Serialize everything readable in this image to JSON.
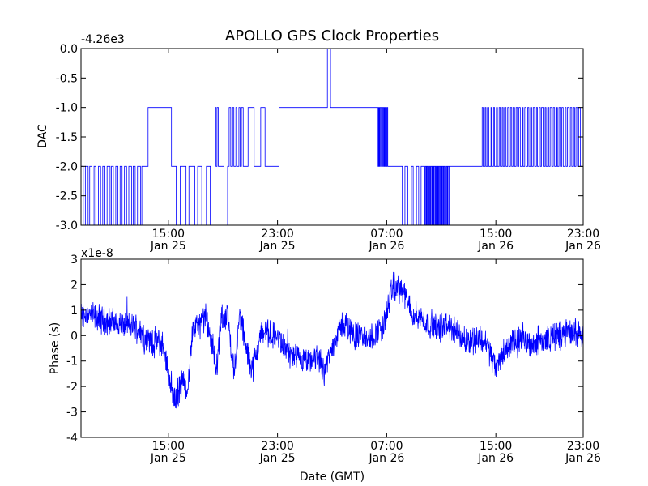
{
  "chart_data": [
    {
      "type": "line",
      "title": "APOLLO GPS Clock Properties",
      "offset_label": "-4.26e3",
      "ylabel": "DAC",
      "xlabel": "",
      "ylim": [
        -3.0,
        0.0
      ],
      "xlim_hours": [
        10.2,
        26.3
      ],
      "line_color": "#0000ff",
      "yticks": [
        {
          "value": 0.0,
          "label": "0.0"
        },
        {
          "value": -0.5,
          "label": "-0.5"
        },
        {
          "value": -1.0,
          "label": "-1.0"
        },
        {
          "value": -1.5,
          "label": "-1.5"
        },
        {
          "value": -2.0,
          "label": "-2.0"
        },
        {
          "value": -2.5,
          "label": "-2.5"
        },
        {
          "value": -3.0,
          "label": "-3.0"
        }
      ],
      "xticks": [
        {
          "hours": 13,
          "time": "15:00",
          "date": "Jan 25"
        },
        {
          "hours": 16.5,
          "time": "23:00",
          "date": "Jan 25"
        },
        {
          "hours": 20,
          "time": "07:00",
          "date": "Jan 26"
        },
        {
          "hours": 23.5,
          "time": "15:00",
          "date": "Jan 26"
        },
        {
          "hours": 27,
          "time": "23:00",
          "date": "Jan 26"
        }
      ],
      "segments": [
        {
          "start": 10.2,
          "end": 12.15,
          "level": -2.0,
          "toggle_to": -3.0,
          "count": 14
        },
        {
          "start": 12.15,
          "end": 12.35,
          "level": -2.0,
          "toggle_to": -1.0,
          "count": 0
        },
        {
          "start": 12.35,
          "end": 13.1,
          "level": -1.0,
          "toggle_to": -2.0,
          "count": 0
        },
        {
          "start": 13.1,
          "end": 14.5,
          "level": -2.0,
          "toggle_to": -3.0,
          "count": 5
        },
        {
          "start": 14.5,
          "end": 14.62,
          "level": -1.0,
          "toggle_to": -2.0,
          "count": 2
        },
        {
          "start": 14.62,
          "end": 14.9,
          "level": -2.0,
          "toggle_to": -3.0,
          "count": 1
        },
        {
          "start": 14.9,
          "end": 15.4,
          "level": -2.0,
          "toggle_to": -1.0,
          "count": 5
        },
        {
          "start": 15.4,
          "end": 16.1,
          "level": -2.0,
          "toggle_to": -1.0,
          "count": 2
        },
        {
          "start": 16.1,
          "end": 16.55,
          "level": -2.0,
          "toggle_to": -1.0,
          "count": 0
        },
        {
          "start": 16.55,
          "end": 17.2,
          "level": -1.0,
          "toggle_to": -2.0,
          "count": 0
        },
        {
          "start": 17.2,
          "end": 18.1,
          "level": -1.0,
          "toggle_to": -1.0,
          "count": 0
        },
        {
          "start": 18.1,
          "end": 18.2,
          "level": 0.0,
          "toggle_to": -1.0,
          "count": 0
        },
        {
          "start": 18.2,
          "end": 19.7,
          "level": -1.0,
          "toggle_to": -1.0,
          "count": 0
        },
        {
          "start": 19.7,
          "end": 20.05,
          "level": -1.0,
          "toggle_to": -2.0,
          "count": 9
        },
        {
          "start": 20.05,
          "end": 20.5,
          "level": -2.0,
          "toggle_to": -2.0,
          "count": 0
        },
        {
          "start": 20.5,
          "end": 21.2,
          "level": -3.0,
          "toggle_to": -2.0,
          "count": 4
        },
        {
          "start": 21.2,
          "end": 22.0,
          "level": -2.0,
          "toggle_to": -3.0,
          "count": 18
        },
        {
          "start": 22.0,
          "end": 23.0,
          "level": -2.0,
          "toggle_to": -2.0,
          "count": 0
        },
        {
          "start": 23.0,
          "end": 26.3,
          "level": -2.0,
          "toggle_to": -1.0,
          "count": 36
        }
      ]
    },
    {
      "type": "line",
      "title": "",
      "offset_label": "x1e-8",
      "ylabel": "Phase (s)",
      "xlabel": "Date (GMT)",
      "ylim": [
        -4,
        3
      ],
      "xlim_hours": [
        10.2,
        26.3
      ],
      "line_color": "#0000ff",
      "yticks": [
        {
          "value": 3,
          "label": "3"
        },
        {
          "value": 2,
          "label": "2"
        },
        {
          "value": 1,
          "label": "1"
        },
        {
          "value": 0,
          "label": "0"
        },
        {
          "value": -1,
          "label": "-1"
        },
        {
          "value": -2,
          "label": "-2"
        },
        {
          "value": -3,
          "label": "-3"
        },
        {
          "value": -4,
          "label": "-4"
        }
      ],
      "xticks": [
        {
          "hours": 13,
          "time": "15:00",
          "date": "Jan 25"
        },
        {
          "hours": 16.5,
          "time": "23:00",
          "date": "Jan 25"
        },
        {
          "hours": 20,
          "time": "07:00",
          "date": "Jan 26"
        },
        {
          "hours": 23.5,
          "time": "15:00",
          "date": "Jan 26"
        },
        {
          "hours": 27,
          "time": "23:00",
          "date": "Jan 26"
        }
      ],
      "trend": [
        {
          "hours": 10.2,
          "value": 0.9
        },
        {
          "hours": 11.0,
          "value": 0.6
        },
        {
          "hours": 11.6,
          "value": 0.4
        },
        {
          "hours": 12.0,
          "value": 0.3
        },
        {
          "hours": 12.4,
          "value": -0.2
        },
        {
          "hours": 12.8,
          "value": -0.3
        },
        {
          "hours": 13.0,
          "value": -1.4
        },
        {
          "hours": 13.2,
          "value": -2.6
        },
        {
          "hours": 13.45,
          "value": -1.8
        },
        {
          "hours": 13.6,
          "value": -2.1
        },
        {
          "hours": 13.8,
          "value": 0.3
        },
        {
          "hours": 14.0,
          "value": 0.4
        },
        {
          "hours": 14.2,
          "value": 0.7
        },
        {
          "hours": 14.4,
          "value": -0.3
        },
        {
          "hours": 14.55,
          "value": -1.3
        },
        {
          "hours": 14.7,
          "value": 0.6
        },
        {
          "hours": 14.9,
          "value": 0.9
        },
        {
          "hours": 15.1,
          "value": -1.5
        },
        {
          "hours": 15.3,
          "value": 0.9
        },
        {
          "hours": 15.5,
          "value": -0.6
        },
        {
          "hours": 15.7,
          "value": -1.3
        },
        {
          "hours": 16.0,
          "value": 0.2
        },
        {
          "hours": 16.5,
          "value": -0.1
        },
        {
          "hours": 17.0,
          "value": -0.9
        },
        {
          "hours": 17.5,
          "value": -1.1
        },
        {
          "hours": 17.8,
          "value": -0.8
        },
        {
          "hours": 18.0,
          "value": -1.4
        },
        {
          "hours": 18.3,
          "value": -0.3
        },
        {
          "hours": 18.6,
          "value": 0.5
        },
        {
          "hours": 19.0,
          "value": 0.0
        },
        {
          "hours": 19.5,
          "value": -0.1
        },
        {
          "hours": 19.9,
          "value": 0.4
        },
        {
          "hours": 20.2,
          "value": 1.9
        },
        {
          "hours": 20.5,
          "value": 1.8
        },
        {
          "hours": 20.8,
          "value": 0.9
        },
        {
          "hours": 21.2,
          "value": 0.6
        },
        {
          "hours": 21.6,
          "value": 0.3
        },
        {
          "hours": 22.0,
          "value": 0.4
        },
        {
          "hours": 22.5,
          "value": -0.2
        },
        {
          "hours": 23.0,
          "value": -0.1
        },
        {
          "hours": 23.2,
          "value": -0.3
        },
        {
          "hours": 23.5,
          "value": -1.3
        },
        {
          "hours": 23.8,
          "value": -0.5
        },
        {
          "hours": 24.2,
          "value": -0.2
        },
        {
          "hours": 24.7,
          "value": -0.3
        },
        {
          "hours": 25.2,
          "value": -0.1
        },
        {
          "hours": 25.8,
          "value": 0.1
        },
        {
          "hours": 26.3,
          "value": 0.1
        }
      ]
    }
  ]
}
